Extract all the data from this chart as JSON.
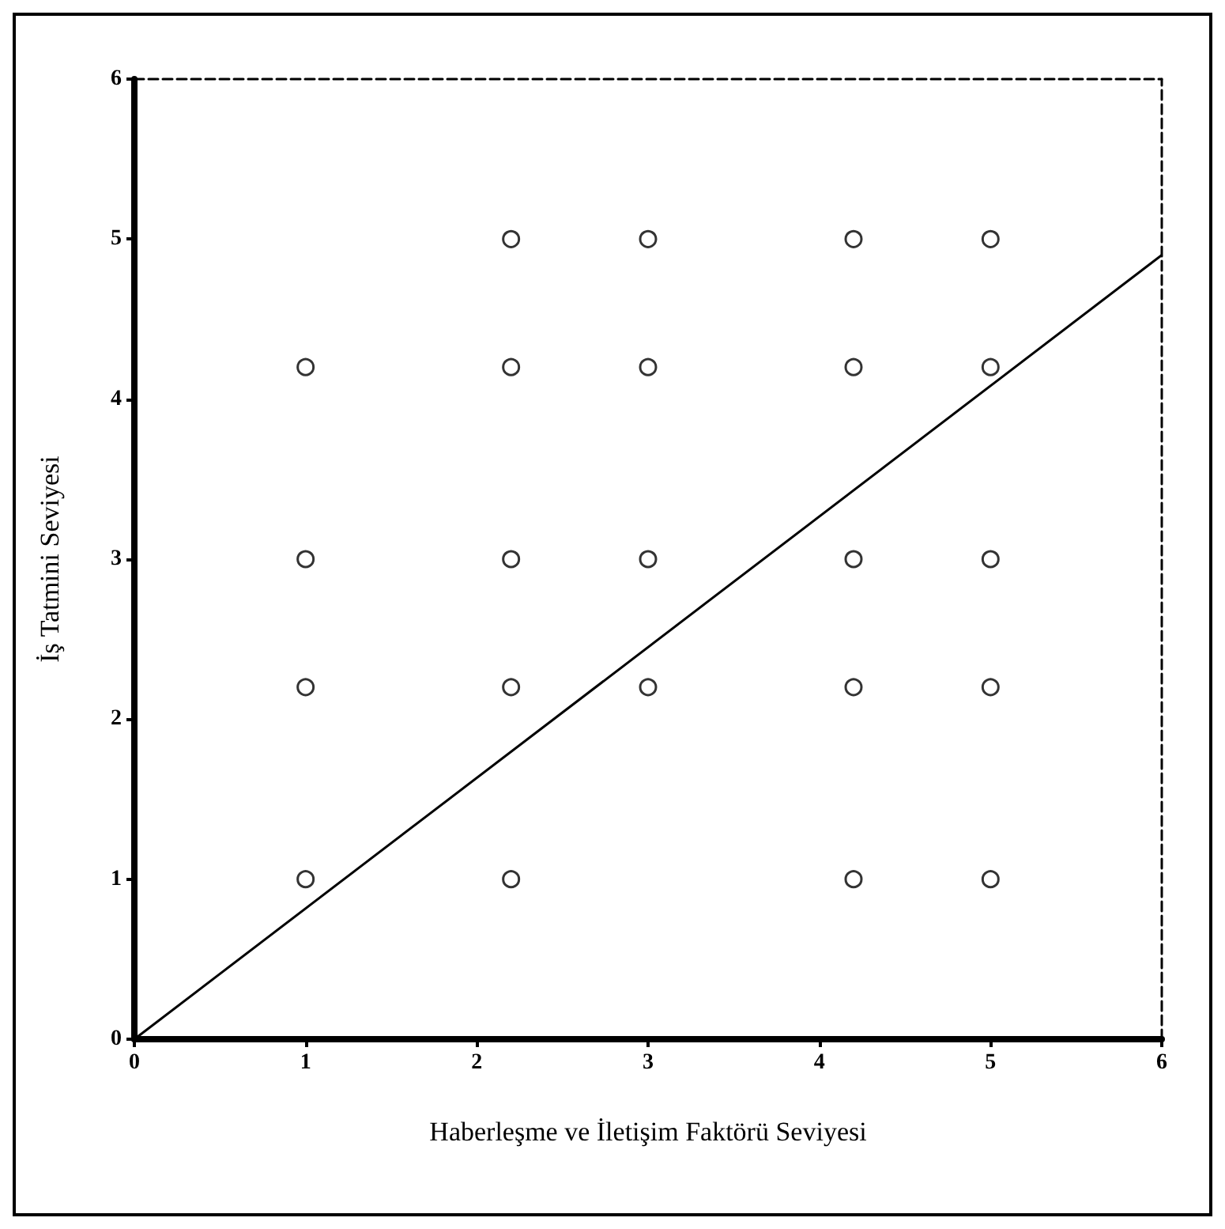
{
  "chart_data": {
    "type": "scatter",
    "xlabel": "Haberleşme ve İletişim Faktörü Seviyesi",
    "ylabel": "İş Tatmini Seviyesi",
    "xlim": [
      0,
      6
    ],
    "ylim": [
      0,
      6
    ],
    "xticks": [
      0,
      1,
      2,
      3,
      4,
      5,
      6
    ],
    "yticks": [
      0,
      1,
      2,
      3,
      4,
      5,
      6
    ],
    "grid": false,
    "series": [
      {
        "type": "scatter",
        "marker": "circle",
        "color": "#000000",
        "x": [
          2.2,
          3,
          4.2,
          5,
          1,
          2.2,
          3,
          4.2,
          5,
          1,
          2.2,
          3,
          4.2,
          5,
          1,
          2.2,
          3,
          4.2,
          5,
          1,
          2.2,
          4.2,
          5
        ],
        "values": [
          5,
          5,
          5,
          5,
          4.2,
          4.2,
          4.2,
          4.2,
          4.2,
          3,
          3,
          3,
          3,
          3,
          2.2,
          2.2,
          2.2,
          2.2,
          2.2,
          1,
          1,
          1,
          1
        ]
      },
      {
        "type": "line",
        "color": "#000000",
        "x": [
          0,
          6
        ],
        "values": [
          0,
          4.9
        ]
      }
    ]
  }
}
